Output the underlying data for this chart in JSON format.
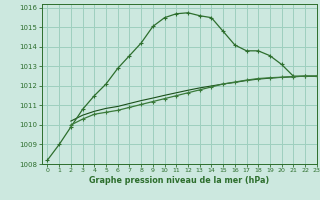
{
  "xlabel": "Graphe pression niveau de la mer (hPa)",
  "bg_color": "#cce8df",
  "grid_color": "#9ecfbf",
  "line_color_1": "#2d6e2d",
  "line_color_2": "#3a7a3a",
  "line_color_3": "#1a501a",
  "xlim": [
    -0.5,
    23
  ],
  "ylim": [
    1008,
    1016.2
  ],
  "yticks": [
    1008,
    1009,
    1010,
    1011,
    1012,
    1013,
    1014,
    1015,
    1016
  ],
  "xticks": [
    0,
    1,
    2,
    3,
    4,
    5,
    6,
    7,
    8,
    9,
    10,
    11,
    12,
    13,
    14,
    15,
    16,
    17,
    18,
    19,
    20,
    21,
    22,
    23
  ],
  "series1_x": [
    0,
    1,
    2,
    3,
    4,
    5,
    6,
    7,
    8,
    9,
    10,
    11,
    12,
    13,
    14,
    15,
    16,
    17,
    18,
    19,
    20,
    21,
    22,
    23
  ],
  "series1_y": [
    1008.2,
    1009.0,
    1009.9,
    1010.8,
    1011.5,
    1012.1,
    1012.9,
    1013.55,
    1014.2,
    1015.05,
    1015.5,
    1015.7,
    1015.75,
    1015.6,
    1015.5,
    1014.8,
    1014.1,
    1013.8,
    1013.8,
    1013.55,
    1013.1,
    1012.5,
    1012.5,
    1012.5
  ],
  "series2_x": [
    2,
    3,
    4,
    5,
    6,
    7,
    8,
    9,
    10,
    11,
    12,
    13,
    14,
    15,
    16,
    17,
    18,
    19,
    20,
    21,
    22,
    23
  ],
  "series2_y": [
    1010.0,
    1010.3,
    1010.55,
    1010.65,
    1010.75,
    1010.9,
    1011.05,
    1011.2,
    1011.35,
    1011.5,
    1011.65,
    1011.8,
    1011.95,
    1012.1,
    1012.2,
    1012.3,
    1012.38,
    1012.42,
    1012.45,
    1012.48,
    1012.5,
    1012.5
  ],
  "series3_x": [
    2,
    3,
    4,
    5,
    6,
    7,
    8,
    9,
    10,
    11,
    12,
    13,
    14,
    15,
    16,
    17,
    18,
    19,
    20,
    21,
    22,
    23
  ],
  "series3_y": [
    1010.2,
    1010.5,
    1010.7,
    1010.85,
    1010.95,
    1011.1,
    1011.25,
    1011.38,
    1011.52,
    1011.65,
    1011.78,
    1011.9,
    1012.0,
    1012.1,
    1012.18,
    1012.28,
    1012.35,
    1012.4,
    1012.44,
    1012.47,
    1012.5,
    1012.5
  ]
}
